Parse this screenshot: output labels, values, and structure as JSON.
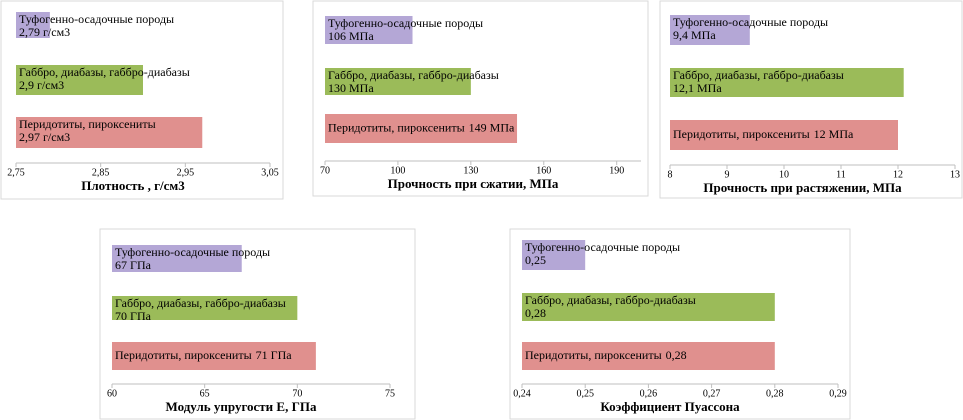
{
  "chart_data": [
    {
      "type": "bar",
      "orientation": "horizontal",
      "x_label": "Плотность , г/см3",
      "categories": [
        "Туфогенно-осадочные породы",
        "Габбро, диабазы, габбро-диабазы",
        "Перидотиты, пироксениты"
      ],
      "values": [
        2.79,
        2.9,
        2.97
      ],
      "value_labels": [
        "2,79 г/см3",
        "2,9 г/см3",
        "2,97 г/см3"
      ],
      "colors": [
        "#b4a7d6",
        "#9bbb59",
        "#e0908e"
      ],
      "xlim": [
        2.75,
        3.05
      ],
      "xticks": [
        {
          "value": 2.75,
          "label": "2,75"
        },
        {
          "value": 2.85,
          "label": "2,85"
        },
        {
          "value": 2.95,
          "label": "2,95"
        },
        {
          "value": 3.05,
          "label": "3,05"
        }
      ]
    },
    {
      "type": "bar",
      "orientation": "horizontal",
      "x_label": "Прочность при сжатии, МПа",
      "categories": [
        "Туфогенно-осадочные породы",
        "Габбро, диабазы, габбро-диабазы",
        "Перидотиты, пироксениты"
      ],
      "values": [
        106,
        130,
        149
      ],
      "value_labels": [
        "106 МПа",
        "130 МПа",
        "149 МПа"
      ],
      "colors": [
        "#b4a7d6",
        "#9bbb59",
        "#e0908e"
      ],
      "xlim": [
        70,
        200
      ],
      "xticks": [
        70,
        100,
        130,
        160,
        190
      ]
    },
    {
      "type": "bar",
      "orientation": "horizontal",
      "x_label": "Прочность при растяжении, МПа",
      "categories": [
        "Туфогенно-осадочные породы",
        "Габбро, диабазы, габбро-диабазы",
        "Перидотиты, пироксениты"
      ],
      "values": [
        9.4,
        12.1,
        12
      ],
      "value_labels": [
        "9,4 МПа",
        "12,1 МПа",
        "12 МПа"
      ],
      "colors": [
        "#b4a7d6",
        "#9bbb59",
        "#e0908e"
      ],
      "xlim": [
        8,
        13
      ],
      "xticks": [
        8,
        9,
        10,
        11,
        12,
        13
      ]
    },
    {
      "type": "bar",
      "orientation": "horizontal",
      "x_label": "Модуль упругости Е, ГПа",
      "categories": [
        "Туфогенно-осадочные породы",
        "Габбро, диабазы, габбро-диабазы",
        "Перидотиты, пироксениты"
      ],
      "values": [
        67,
        70,
        71
      ],
      "value_labels": [
        "67 ГПа",
        "70 ГПа",
        "71 ГПа"
      ],
      "colors": [
        "#b4a7d6",
        "#9bbb59",
        "#e0908e"
      ],
      "xlim": [
        60,
        75
      ],
      "xticks": [
        60,
        65,
        70,
        75
      ]
    },
    {
      "type": "bar",
      "orientation": "horizontal",
      "x_label": "Коэффициент Пуассона",
      "categories": [
        "Туфогенно-осадочные породы",
        "Габбро, диабазы, габбро-диабазы",
        "Перидотиты, пироксениты"
      ],
      "values": [
        0.25,
        0.28,
        0.28
      ],
      "value_labels": [
        "0,25",
        "0,28",
        "0,28"
      ],
      "colors": [
        "#b4a7d6",
        "#9bbb59",
        "#e0908e"
      ],
      "xlim": [
        0.24,
        0.29
      ],
      "xticks": [
        {
          "value": 0.24,
          "label": "0,24"
        },
        {
          "value": 0.25,
          "label": "0,25"
        },
        {
          "value": 0.26,
          "label": "0,26"
        },
        {
          "value": 0.27,
          "label": "0,27"
        },
        {
          "value": 0.28,
          "label": "0,28"
        },
        {
          "value": 0.29,
          "label": "0,29"
        }
      ]
    }
  ]
}
